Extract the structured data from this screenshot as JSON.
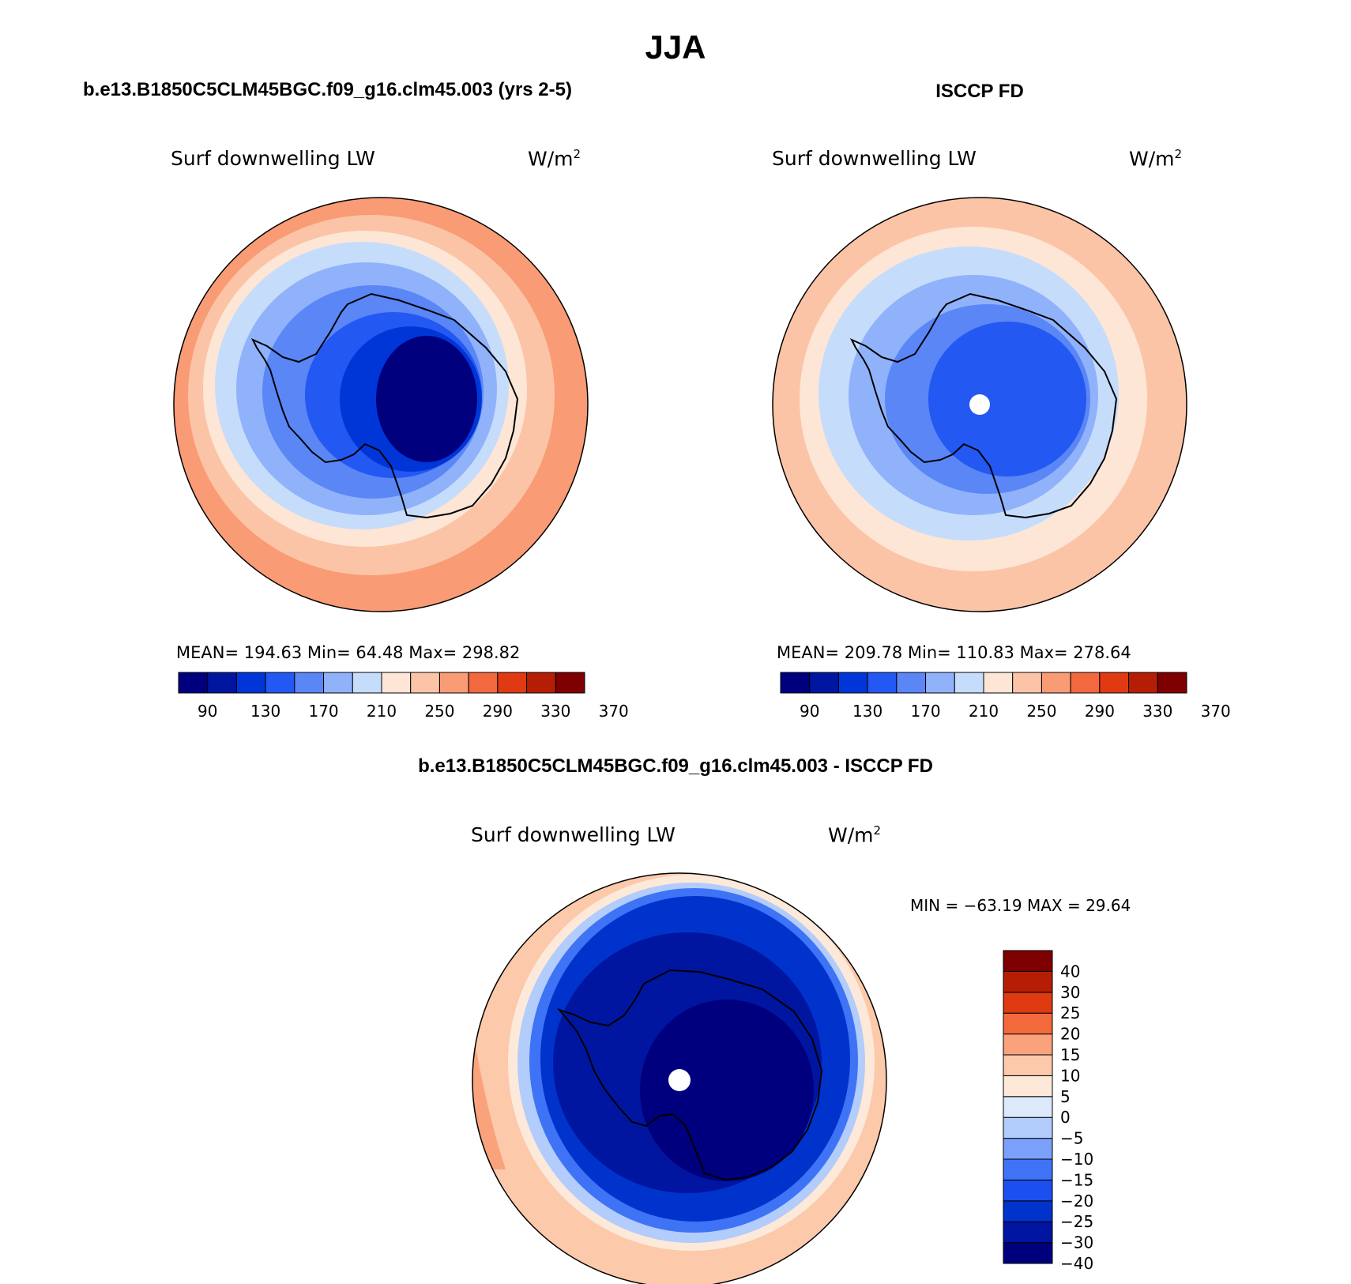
{
  "figure": {
    "title": "JJA",
    "top_left_title": "b.e13.B1850C5CLM45BGC.f09_g16.clm45.003 (yrs 2-5)",
    "top_right_title": "ISCCP FD",
    "bottom_title": "b.e13.B1850C5CLM45BGC.f09_g16.clm45.003 - ISCCP FD"
  },
  "colors": {
    "abs_scale": [
      "#00007f",
      "#0016a0",
      "#0036d8",
      "#2458f2",
      "#5a86f6",
      "#90b2fa",
      "#c6dcfb",
      "#fde6d6",
      "#fcc4a6",
      "#f99b74",
      "#f2683f",
      "#e03a12",
      "#b51e05",
      "#7f0000"
    ],
    "diff_scale": [
      "#00007f",
      "#0016a0",
      "#0033cc",
      "#1b4ff0",
      "#3f73f6",
      "#7aa0fa",
      "#b2ccfb",
      "#dbe9fb",
      "#fde9d9",
      "#fcc9aa",
      "#f9a27c",
      "#f26a3c",
      "#e03a12",
      "#b51e05",
      "#7f0000"
    ]
  },
  "chart_data": [
    {
      "type": "heatmap",
      "name": "model",
      "title": "b.e13.B1850C5CLM45BGC.f09_g16.clm45.003 (yrs 2-5)",
      "left_label": "Surf downwelling LW",
      "units": "W/m",
      "units_exp": "2",
      "stats": {
        "mean": "194.63",
        "min": "64.48",
        "max": "298.82"
      },
      "stats_text": "MEAN= 194.63   Min=   64.48   Max= 298.82",
      "colorbar_ticks": [
        "90",
        "130",
        "170",
        "210",
        "250",
        "290",
        "330",
        "370"
      ],
      "levels": [
        70,
        90,
        110,
        130,
        150,
        170,
        190,
        210,
        230,
        250,
        270,
        290,
        310,
        330,
        350,
        370
      ]
    },
    {
      "type": "heatmap",
      "name": "obs",
      "title": "ISCCP FD",
      "left_label": "Surf downwelling LW",
      "units": "W/m",
      "units_exp": "2",
      "stats": {
        "mean": "209.78",
        "min": "110.83",
        "max": "278.64"
      },
      "stats_text": "MEAN= 209.78   Min= 110.83   Max= 278.64",
      "colorbar_ticks": [
        "90",
        "130",
        "170",
        "210",
        "250",
        "290",
        "330",
        "370"
      ],
      "levels": [
        70,
        90,
        110,
        130,
        150,
        170,
        190,
        210,
        230,
        250,
        270,
        290,
        310,
        330,
        350,
        370
      ]
    },
    {
      "type": "heatmap",
      "name": "difference",
      "title": "b.e13.B1850C5CLM45BGC.f09_g16.clm45.003 - ISCCP FD",
      "left_label": "Surf downwelling LW",
      "units": "W/m",
      "units_exp": "2",
      "stats": {
        "min": "-63.19",
        "max": "29.64"
      },
      "stats_text": "MIN = −63.19 MAX =  29.64",
      "colorbar_ticks": [
        "40",
        "30",
        "25",
        "20",
        "15",
        "10",
        "5",
        "0",
        "−5",
        "−10",
        "−15",
        "−20",
        "−25",
        "−30",
        "−40"
      ],
      "levels": [
        -40,
        -30,
        -25,
        -20,
        -15,
        -10,
        -5,
        0,
        5,
        10,
        15,
        20,
        25,
        30,
        40
      ]
    }
  ]
}
